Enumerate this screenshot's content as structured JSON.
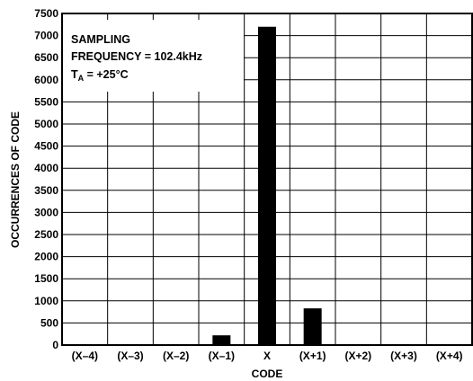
{
  "chart_data": {
    "type": "bar",
    "categories": [
      "(X–4)",
      "(X–3)",
      "(X–2)",
      "(X–1)",
      "X",
      "(X+1)",
      "(X+2)",
      "(X+3)",
      "(X+4)"
    ],
    "values": [
      0,
      0,
      0,
      220,
      7200,
      830,
      0,
      0,
      0
    ],
    "xlabel": "CODE",
    "ylabel": "OCCURRENCES OF CODE",
    "ylim": [
      0,
      7500
    ],
    "yticks": [
      0,
      500,
      1000,
      1500,
      2000,
      2500,
      3000,
      3500,
      4000,
      4500,
      5000,
      5500,
      6000,
      6500,
      7000,
      7500
    ],
    "grid": true,
    "legend": "none",
    "bar_color": "#000000",
    "annotation": {
      "line1": "SAMPLING",
      "line2": "FREQUENCY = 102.4kHz",
      "line3_main": "T",
      "line3_sub": "A",
      "line3_rest": " = +25°C"
    }
  }
}
